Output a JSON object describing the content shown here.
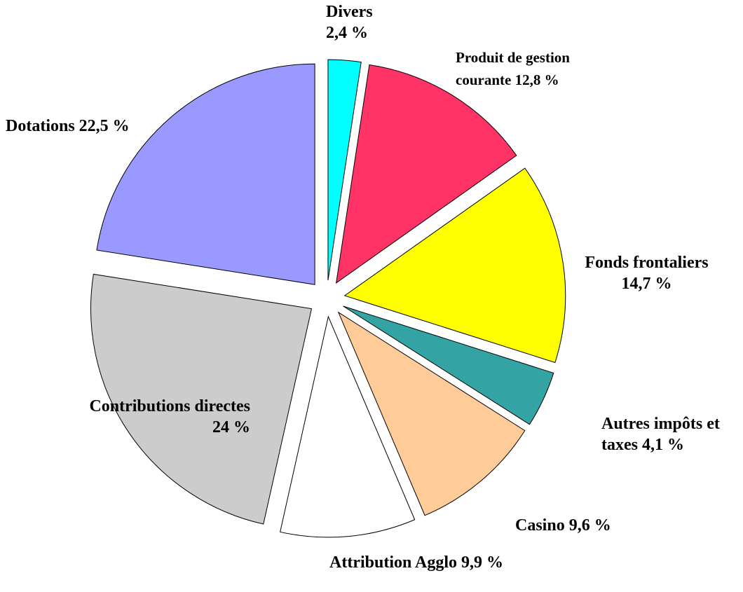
{
  "chart_data": {
    "type": "pie",
    "categories": [
      "Divers",
      "Produit de gestion courante",
      "Fonds frontaliers",
      "Autres impôts et taxes",
      "Casino",
      "Attribution  Agglo",
      "Contributions directes",
      "Dotations"
    ],
    "values": [
      2.4,
      12.8,
      14.7,
      4.1,
      9.6,
      9.9,
      24,
      22.5
    ],
    "value_labels": [
      "2,4 %",
      "12,8 %",
      "14,7 %",
      "4,1 %",
      "9,6 %",
      "9,9 %",
      "24 %",
      "22,5 %"
    ],
    "colors": [
      "#00ffff",
      "#ff3366",
      "#ffff00",
      "#33a3a3",
      "#ffcc99",
      "#ffffff",
      "#cccccc",
      "#9999ff"
    ]
  }
}
